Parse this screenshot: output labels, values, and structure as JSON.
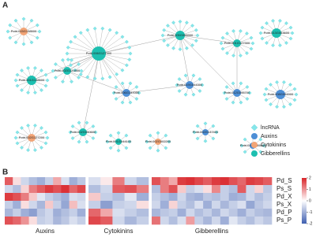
{
  "panels": [
    "A",
    "B"
  ],
  "network": {
    "legend": [
      {
        "name": "lncRNA",
        "color": "#86e6ea"
      },
      {
        "name": "Auxins",
        "color": "#4d8fd6"
      },
      {
        "name": "Cytokinins",
        "color": "#f2a476"
      },
      {
        "name": "Gibberellins",
        "color": "#1dbfb0"
      }
    ],
    "nodes": [
      {
        "label": "Potri.015G138500",
        "type": "Cytokinins"
      },
      {
        "label": "Potri.006G127300",
        "type": "Gibberellins"
      },
      {
        "label": "Potri.002G120800",
        "type": "Gibberellins"
      },
      {
        "label": "Potri.001G138500",
        "type": "Gibberellins"
      },
      {
        "label": "Potri.006G137000",
        "type": "Auxins"
      },
      {
        "label": "Potri.005G095900",
        "type": "Gibberellins"
      },
      {
        "label": "Potri.001G127300",
        "type": "Gibberellins"
      },
      {
        "label": "Potri.013G053600",
        "type": "Gibberellins"
      },
      {
        "label": "Potri.019G044300",
        "type": "Auxins"
      },
      {
        "label": "Potri.012G095700",
        "type": "Auxins"
      },
      {
        "label": "Potri.008G094900",
        "type": "Auxins"
      },
      {
        "label": "Potri.002G127200",
        "type": "Cytokinins"
      },
      {
        "label": "Potri.002G050600",
        "type": "Gibberellins"
      },
      {
        "label": "Potri.001G044100",
        "type": "Gibberellins"
      },
      {
        "label": "Potri.002G002200",
        "type": "Cytokinins"
      },
      {
        "label": "Potri.002G137400",
        "type": "Auxins"
      },
      {
        "label": "Potri.014G165400",
        "type": "Auxins"
      }
    ]
  },
  "heatmap": {
    "rows": [
      "Pd_S",
      "Ps_S",
      "Pd_X",
      "Ps_X",
      "Pd_P",
      "Ps_P"
    ],
    "colors": {
      "low": "#3f5fb0",
      "mid": "#ffffff",
      "high": "#d9262b"
    },
    "colorbar": {
      "range": [
        -2,
        2
      ],
      "ticks": [
        2,
        1,
        0,
        -1,
        -2
      ]
    },
    "blocks": [
      {
        "name": "Auxins",
        "values": [
          [
            1.5,
            0.3,
            -0.5,
            -0.8,
            -1,
            -0.6,
            0.8,
            -0.4,
            -1,
            -0.7
          ],
          [
            -0.5,
            -0.8,
            0.4,
            1.2,
            1.5,
            1.8,
            1.6,
            1.9,
            1.4,
            1.7
          ],
          [
            1.8,
            1.6,
            1.2,
            0.5,
            -0.3,
            -0.6,
            -0.8,
            -1,
            -0.4,
            -0.5
          ],
          [
            -0.6,
            -1,
            0.3,
            -0.5,
            -0.9,
            0.5,
            -0.6,
            -1.1,
            0.6,
            -0.4
          ],
          [
            -0.9,
            -0.6,
            -1,
            -1.2,
            -0.7,
            -0.5,
            -1,
            -0.8,
            -0.6,
            -1
          ],
          [
            1.6,
            1.4,
            1,
            0.3,
            -0.6,
            -0.5,
            -0.9,
            -0.7,
            -0.4,
            -0.6
          ]
        ]
      },
      {
        "name": "Cytokinins",
        "values": [
          [
            -0.4,
            0.2,
            1.2,
            -0.5,
            -0.8
          ],
          [
            -0.8,
            -0.5,
            1.5,
            1.6,
            1.2
          ],
          [
            0.5,
            -0.6,
            -0.8,
            -0.3,
            -1
          ],
          [
            -0.6,
            -1.2,
            -0.6,
            -0.5,
            0.3
          ],
          [
            1.4,
            0.8,
            -0.4,
            -0.6,
            -0.8
          ],
          [
            1.7,
            1.5,
            -0.5,
            -0.9,
            -0.6
          ]
        ]
      },
      {
        "name": "Gibberellins",
        "values": [
          [
            1.6,
            1.2,
            0.8,
            1.8,
            1.9,
            1.7,
            1.5,
            1.8,
            1.9,
            1.6,
            1.4,
            1.8,
            1.7,
            1.5
          ],
          [
            -0.8,
            1.2,
            1.6,
            0.5,
            -0.6,
            -0.4,
            0.3,
            1.1,
            -0.6,
            -0.8,
            1.5,
            -0.5,
            0.4,
            -0.7
          ],
          [
            -0.6,
            -0.8,
            -1,
            -0.5,
            -0.9,
            -1,
            -0.7,
            -0.8,
            -0.6,
            -1,
            -0.9,
            -0.5,
            -0.8,
            -0.6
          ],
          [
            -0.5,
            -1,
            0.4,
            -0.6,
            -0.8,
            -0.4,
            -1,
            -0.5,
            -0.9,
            -0.6,
            -0.4,
            -1.1,
            -0.7,
            -0.5
          ],
          [
            -0.9,
            -0.7,
            -0.6,
            -1,
            -0.5,
            -0.8,
            -0.6,
            -0.9,
            -0.5,
            -0.7,
            -1,
            -0.6,
            -0.8,
            -0.9
          ],
          [
            1.3,
            -0.5,
            -0.8,
            -0.4,
            0.9,
            -0.6,
            -0.9,
            -0.5,
            -1,
            -0.3,
            -0.6,
            -0.8,
            -0.5,
            -0.7
          ]
        ]
      }
    ]
  }
}
